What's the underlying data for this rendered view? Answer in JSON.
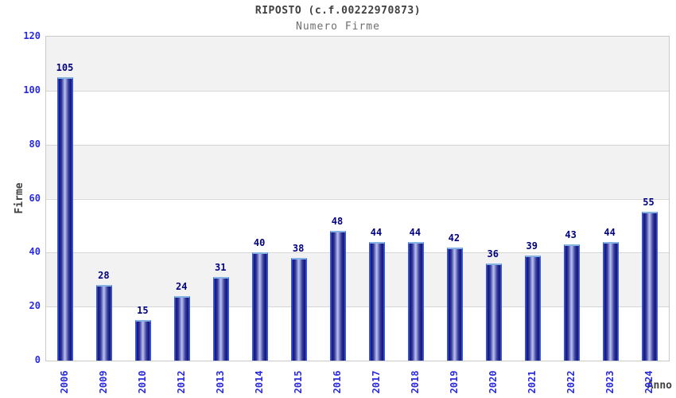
{
  "chart_data": {
    "type": "bar",
    "title": "RIPOSTO (c.f.00222970873)",
    "subtitle": "Numero Firme",
    "xlabel": "Anno",
    "ylabel": "Firme",
    "categories": [
      "2006",
      "2009",
      "2010",
      "2012",
      "2013",
      "2014",
      "2015",
      "2016",
      "2017",
      "2018",
      "2019",
      "2020",
      "2021",
      "2022",
      "2023",
      "2024"
    ],
    "values": [
      105,
      28,
      15,
      24,
      31,
      40,
      38,
      48,
      44,
      44,
      42,
      36,
      39,
      43,
      44,
      55
    ],
    "ylim": [
      0,
      120
    ],
    "yticks": [
      0,
      20,
      40,
      60,
      80,
      100,
      120
    ],
    "grid": "horizontal",
    "legend": "none",
    "colors": {
      "bar_edge": "#3b5bd6",
      "bar_dark": "#12127a",
      "bar_highlight": "#bcc2ec",
      "bar_cap": "#85b4e4",
      "value_label": "#000080",
      "tick_label": "#2a2ae0",
      "axis_title": "#404040",
      "title_text": "#404040",
      "subtitle_text": "#6e6e6e",
      "band_gray": "#f2f2f2",
      "band_white": "#ffffff",
      "plot_border": "#c9c9c9",
      "gridline": "#d6d6d6"
    }
  }
}
